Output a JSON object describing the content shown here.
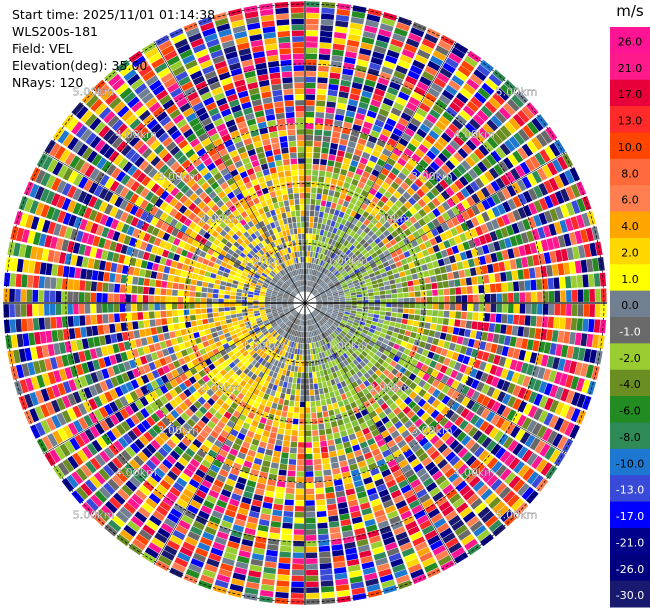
{
  "header": {
    "start_time": "Start time: 2025/11/01 01:14:38",
    "instrument": "WLS200s-181",
    "field": "Field: VEL",
    "elevation": "Elevation(deg): 35.00",
    "nrays": "NRays: 120"
  },
  "chart_data": {
    "type": "heatmap",
    "projection": "polar-ppi",
    "rays": 120,
    "range_rings_km": [
      1.0,
      2.0,
      3.0,
      4.0,
      5.0
    ],
    "ring_label": "km",
    "ring_label_texts": [
      "1.00km",
      "2.00km",
      "3.00km",
      "4.00km",
      "5.00km"
    ],
    "max_range_km": 5.0,
    "colorbar": {
      "unit": "m/s",
      "tick_labels": [
        "26.0",
        "21.0",
        "17.0",
        "13.0",
        "10.0",
        "8.0",
        "6.0",
        "4.0",
        "2.0",
        "1.0",
        "0.0",
        "-1.0",
        "-2.0",
        "-4.0",
        "-6.0",
        "-8.0",
        "-10.0",
        "-13.0",
        "-17.0",
        "-21.0",
        "-26.0",
        "-30.0"
      ],
      "colors": [
        "#ff1493",
        "#ff1a8c",
        "#e8003a",
        "#ff2a2a",
        "#ff4500",
        "#ff6a3d",
        "#ff7f50",
        "#ffa500",
        "#ffd700",
        "#ffff00",
        "#708090",
        "#696969",
        "#9acd32",
        "#6b8e23",
        "#228b22",
        "#2e8b57",
        "#1e78d2",
        "#3a4ad8",
        "#0000ff",
        "#00008b",
        "#000080",
        "#191970"
      ]
    },
    "zones": [
      {
        "range_km": [
          0.0,
          1.0
        ],
        "pattern": "gray-green-core"
      },
      {
        "range_km": [
          1.0,
          2.0
        ],
        "pattern": "yellow-green-gray"
      },
      {
        "range_km": [
          2.0,
          3.0
        ],
        "pattern": "orange-green-mixed"
      },
      {
        "range_km": [
          3.0,
          5.0
        ],
        "pattern": "noise-all-colors"
      }
    ]
  }
}
